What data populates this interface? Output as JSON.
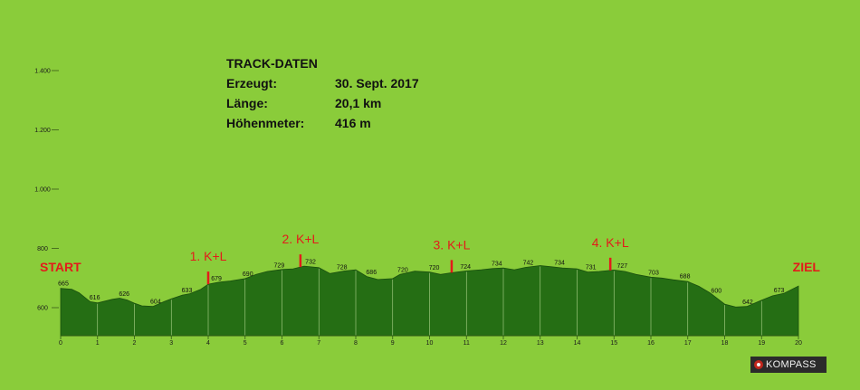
{
  "track_info": {
    "title": "TRACK-DATEN",
    "rows": [
      {
        "label": "Erzeugt:",
        "value": "30. Sept. 2017"
      },
      {
        "label": "Länge:",
        "value": "20,1 km"
      },
      {
        "label": "Höhenmeter:",
        "value": "416 m"
      }
    ]
  },
  "brand": {
    "label": "KOMPASS",
    "icon": "compass-icon"
  },
  "colors": {
    "background": "#8acc3a",
    "profile_fill": "#256e14",
    "grid": "#c8e6a3",
    "marker": "#e31b1b"
  },
  "chart_data": {
    "type": "area",
    "title": "",
    "xlabel": "",
    "ylabel": "",
    "xlim": [
      0,
      20
    ],
    "ylim": [
      500,
      1500
    ],
    "x_ticks": [
      0,
      1,
      2,
      3,
      4,
      5,
      6,
      7,
      8,
      9,
      10,
      11,
      12,
      13,
      14,
      15,
      16,
      17,
      18,
      19,
      20
    ],
    "y_ticks": [
      {
        "value": 600,
        "label": "600"
      },
      {
        "value": 800,
        "label": "800"
      },
      {
        "value": 1000,
        "label": "1.000"
      },
      {
        "value": 1200,
        "label": "1.200"
      },
      {
        "value": 1400,
        "label": "1.400"
      }
    ],
    "grid": "vertical",
    "profile": [
      [
        0,
        665
      ],
      [
        0.3,
        662
      ],
      [
        0.5,
        650
      ],
      [
        0.8,
        620
      ],
      [
        1.0,
        616
      ],
      [
        1.2,
        622
      ],
      [
        1.4,
        628
      ],
      [
        1.6,
        632
      ],
      [
        1.8,
        626
      ],
      [
        2.0,
        615
      ],
      [
        2.2,
        606
      ],
      [
        2.5,
        604
      ],
      [
        2.8,
        620
      ],
      [
        3.0,
        630
      ],
      [
        3.3,
        642
      ],
      [
        3.5,
        647
      ],
      [
        3.8,
        662
      ],
      [
        4.0,
        679
      ],
      [
        4.3,
        686
      ],
      [
        4.6,
        690
      ],
      [
        5.0,
        698
      ],
      [
        5.3,
        712
      ],
      [
        5.6,
        722
      ],
      [
        6.0,
        729
      ],
      [
        6.3,
        731
      ],
      [
        6.6,
        740
      ],
      [
        7.0,
        735
      ],
      [
        7.3,
        715
      ],
      [
        7.7,
        724
      ],
      [
        8.0,
        728
      ],
      [
        8.3,
        705
      ],
      [
        8.6,
        695
      ],
      [
        9.0,
        698
      ],
      [
        9.2,
        712
      ],
      [
        9.6,
        723
      ],
      [
        10.0,
        720
      ],
      [
        10.3,
        712
      ],
      [
        10.6,
        718
      ],
      [
        11.0,
        724
      ],
      [
        11.4,
        728
      ],
      [
        11.7,
        732
      ],
      [
        12.0,
        734
      ],
      [
        12.3,
        728
      ],
      [
        12.6,
        736
      ],
      [
        13.0,
        742
      ],
      [
        13.3,
        738
      ],
      [
        13.6,
        734
      ],
      [
        14.0,
        731
      ],
      [
        14.3,
        720
      ],
      [
        14.6,
        722
      ],
      [
        15.0,
        727
      ],
      [
        15.3,
        722
      ],
      [
        15.6,
        712
      ],
      [
        16.0,
        703
      ],
      [
        16.3,
        700
      ],
      [
        16.6,
        694
      ],
      [
        17.0,
        688
      ],
      [
        17.3,
        672
      ],
      [
        17.6,
        650
      ],
      [
        18.0,
        612
      ],
      [
        18.3,
        602
      ],
      [
        18.6,
        604
      ],
      [
        19.0,
        625
      ],
      [
        19.3,
        640
      ],
      [
        19.6,
        648
      ],
      [
        20.0,
        673
      ]
    ],
    "elevation_labels": [
      {
        "x": 0.0,
        "value": "665"
      },
      {
        "x": 0.85,
        "value": "616"
      },
      {
        "x": 1.65,
        "value": "626"
      },
      {
        "x": 2.5,
        "value": "604"
      },
      {
        "x": 3.35,
        "value": "633"
      },
      {
        "x": 4.15,
        "value": "679"
      },
      {
        "x": 5.0,
        "value": "690"
      },
      {
        "x": 5.85,
        "value": "729"
      },
      {
        "x": 6.7,
        "value": "732"
      },
      {
        "x": 7.55,
        "value": "728"
      },
      {
        "x": 8.35,
        "value": "686"
      },
      {
        "x": 9.2,
        "value": "720"
      },
      {
        "x": 10.05,
        "value": "720"
      },
      {
        "x": 10.9,
        "value": "724"
      },
      {
        "x": 11.75,
        "value": "734"
      },
      {
        "x": 12.6,
        "value": "742"
      },
      {
        "x": 13.45,
        "value": "734"
      },
      {
        "x": 14.3,
        "value": "731"
      },
      {
        "x": 15.15,
        "value": "727"
      },
      {
        "x": 16.0,
        "value": "703"
      },
      {
        "x": 16.85,
        "value": "688"
      },
      {
        "x": 17.7,
        "value": "600"
      },
      {
        "x": 18.55,
        "value": "642"
      },
      {
        "x": 19.4,
        "value": "673"
      }
    ],
    "checkpoints": [
      {
        "x": 4.0,
        "label": "1. K+L"
      },
      {
        "x": 6.5,
        "label": "2. K+L"
      },
      {
        "x": 10.6,
        "label": "3. K+L"
      },
      {
        "x": 14.9,
        "label": "4. K+L"
      }
    ],
    "start_label": "START",
    "end_label": "ZIEL"
  }
}
